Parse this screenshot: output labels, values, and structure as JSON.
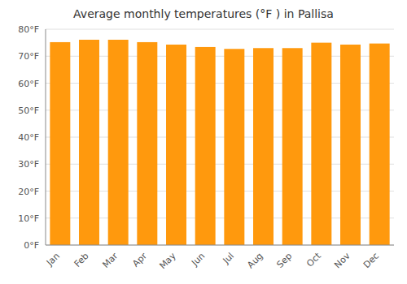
{
  "chart_data": {
    "type": "bar",
    "title": "Average monthly temperatures (°F ) in Pallisa",
    "categories": [
      "Jan",
      "Feb",
      "Mar",
      "Apr",
      "May",
      "Jun",
      "Jul",
      "Aug",
      "Sep",
      "Oct",
      "Nov",
      "Dec"
    ],
    "values": [
      75.2,
      76.1,
      76.1,
      75.2,
      74.3,
      73.4,
      72.7,
      73.0,
      73.0,
      75.0,
      74.3,
      74.7
    ],
    "color": "#ff990d",
    "ylim": [
      0,
      80
    ],
    "yticks": [
      {
        "value": 0,
        "label": "0°F"
      },
      {
        "value": 10,
        "label": "10°F"
      },
      {
        "value": 20,
        "label": "20°F"
      },
      {
        "value": 30,
        "label": "30°F"
      },
      {
        "value": 40,
        "label": "40°F"
      },
      {
        "value": 50,
        "label": "50°F"
      },
      {
        "value": 60,
        "label": "60°F"
      },
      {
        "value": 70,
        "label": "70°F"
      },
      {
        "value": 80,
        "label": "80°F"
      }
    ],
    "grid": true
  }
}
